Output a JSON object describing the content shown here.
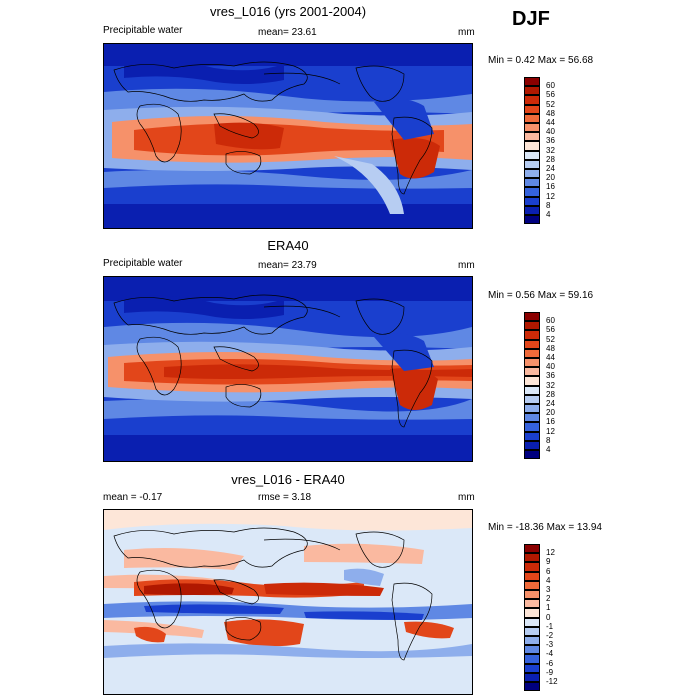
{
  "season": "DJF",
  "panels": [
    {
      "title": "vres_L016 (yrs 2001-2004)",
      "left_label": "Precipitable water",
      "center_label": "mean=  23.61",
      "units": "mm",
      "minmax": "Min =   0.42 Max =  56.68",
      "colorbar": {
        "labels": [
          "60",
          "56",
          "52",
          "48",
          "44",
          "40",
          "36",
          "32",
          "28",
          "24",
          "20",
          "16",
          "12",
          "8",
          "4"
        ],
        "colors": [
          "#8b0000",
          "#b01800",
          "#cc2a08",
          "#e2461a",
          "#ef6a3a",
          "#f6916a",
          "#fab9a0",
          "#fde6d8",
          "#dbe8f8",
          "#b7cdf2",
          "#8eaeec",
          "#5f88e4",
          "#3562dc",
          "#1a3fce",
          "#0a1fb0",
          "#00007f"
        ]
      }
    },
    {
      "title": "ERA40",
      "left_label": "Precipitable water",
      "center_label": "mean=  23.79",
      "units": "mm",
      "minmax": "Min =   0.56 Max =  59.16",
      "colorbar": {
        "labels": [
          "60",
          "56",
          "52",
          "48",
          "44",
          "40",
          "36",
          "32",
          "28",
          "24",
          "20",
          "16",
          "12",
          "8",
          "4"
        ],
        "colors": [
          "#8b0000",
          "#b01800",
          "#cc2a08",
          "#e2461a",
          "#ef6a3a",
          "#f6916a",
          "#fab9a0",
          "#fde6d8",
          "#dbe8f8",
          "#b7cdf2",
          "#8eaeec",
          "#5f88e4",
          "#3562dc",
          "#1a3fce",
          "#0a1fb0",
          "#00007f"
        ]
      }
    },
    {
      "title": "vres_L016 - ERA40",
      "left_label": "mean =  -0.17",
      "center_label": "rmse =    3.18",
      "units": "mm",
      "minmax": "Min = -18.36 Max =  13.94",
      "colorbar": {
        "labels": [
          "12",
          "9",
          "6",
          "4",
          "3",
          "2",
          "1",
          "0",
          "-1",
          "-2",
          "-3",
          "-4",
          "-6",
          "-9",
          "-12"
        ],
        "colors": [
          "#8b0000",
          "#b01800",
          "#cc2a08",
          "#e2461a",
          "#ef6a3a",
          "#f6916a",
          "#fab9a0",
          "#fde6d8",
          "#dbe8f8",
          "#b7cdf2",
          "#8eaeec",
          "#5f88e4",
          "#3562dc",
          "#1a3fce",
          "#0a1fb0",
          "#00007f"
        ]
      }
    }
  ]
}
